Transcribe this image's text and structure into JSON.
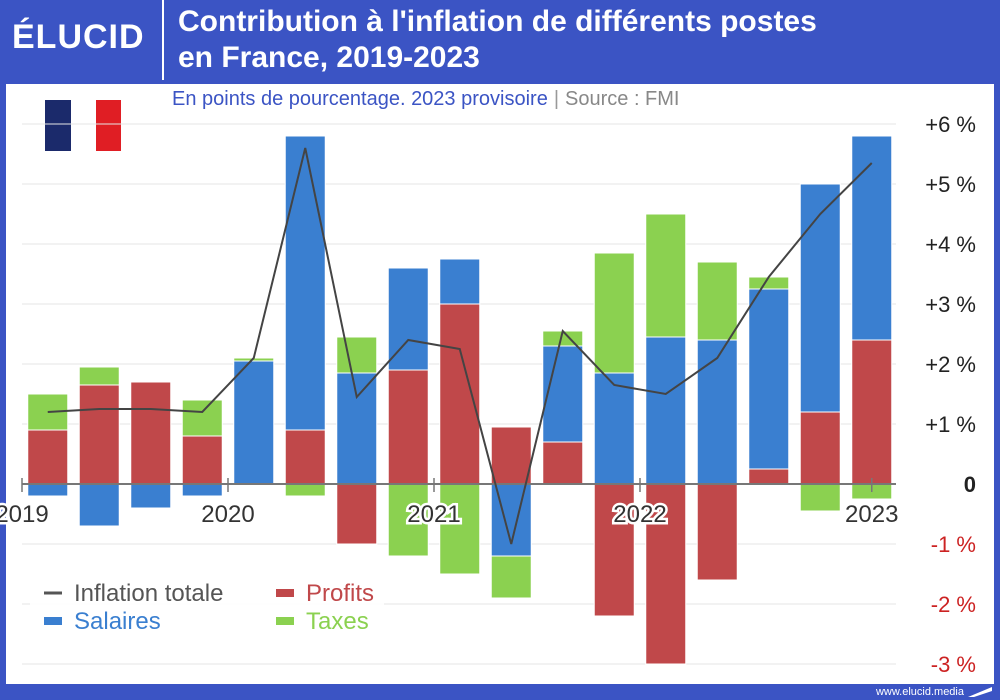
{
  "header": {
    "logo_text": "ÉLUCID",
    "title_line1": "Contribution à l'inflation de différents postes",
    "title_line2": "en France, 2019-2023",
    "subtitle": "En points de pourcentage. 2023 provisoire",
    "separator": "|",
    "source": "Source : FMI"
  },
  "footer": {
    "url": "www.elucid.media"
  },
  "colors": {
    "brand": "#3b54c4",
    "salaires": "#3a7fd0",
    "profits": "#c0484a",
    "taxes": "#8bd150",
    "line": "#444444",
    "negative_tick": "#cc2222"
  },
  "chart_data": {
    "type": "bar",
    "stacked": true,
    "ylim": [
      -3,
      6
    ],
    "yticks": [
      6,
      5,
      4,
      3,
      2,
      1,
      0,
      -1,
      -2,
      -3
    ],
    "ytick_labels": [
      "+6 %",
      "+5 %",
      "+4 %",
      "+3 %",
      "+2 %",
      "+1 %",
      "0",
      "-1 %",
      "-2 %",
      "-3 %"
    ],
    "x_year_labels": [
      {
        "label": "2019",
        "at_index": 0
      },
      {
        "label": "2020",
        "at_index": 4
      },
      {
        "label": "2021",
        "at_index": 8
      },
      {
        "label": "2022",
        "at_index": 12
      },
      {
        "label": "2023",
        "at_index": 16
      }
    ],
    "quarters": 17,
    "series": [
      {
        "name": "Profits",
        "values": [
          0.9,
          1.65,
          1.7,
          0.8,
          0,
          0.9,
          -1.0,
          1.9,
          3.0,
          0.95,
          0.7,
          -2.2,
          -3.0,
          -1.6,
          0.25,
          1.2,
          2.4
        ]
      },
      {
        "name": "Salaires",
        "values": [
          -0.2,
          -0.7,
          -0.4,
          -0.2,
          2.05,
          4.9,
          1.85,
          1.7,
          0.75,
          -1.2,
          1.6,
          1.85,
          2.45,
          2.4,
          3.0,
          3.8,
          3.4
        ]
      },
      {
        "name": "Taxes",
        "values": [
          0.6,
          0.3,
          0,
          0.6,
          0.05,
          -0.2,
          0.6,
          -1.2,
          -1.5,
          -0.7,
          0.25,
          2.0,
          2.05,
          1.3,
          0.2,
          -0.45,
          -0.25
        ]
      }
    ],
    "line": {
      "name": "Inflation totale",
      "values": [
        1.2,
        1.25,
        1.25,
        1.2,
        2.1,
        5.6,
        1.45,
        2.4,
        2.25,
        -1.0,
        2.55,
        1.65,
        1.5,
        2.1,
        3.45,
        4.5,
        5.35
      ]
    },
    "legend": [
      {
        "name": "Inflation totale",
        "kind": "line"
      },
      {
        "name": "Profits",
        "kind": "bar"
      },
      {
        "name": "Salaires",
        "kind": "bar"
      },
      {
        "name": "Taxes",
        "kind": "bar"
      }
    ],
    "legend_position": "bottom-left"
  }
}
